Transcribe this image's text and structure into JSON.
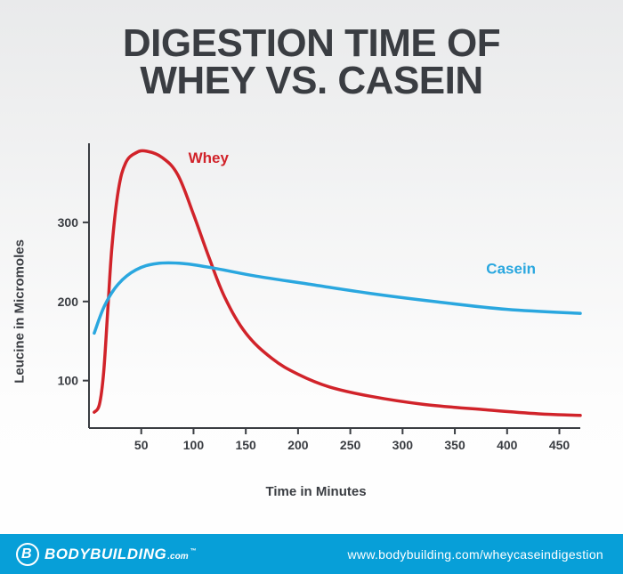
{
  "title_line1": "DIGESTION TIME OF",
  "title_line2": "WHEY VS. CASEIN",
  "chart": {
    "type": "line",
    "xlabel": "Time in Minutes",
    "ylabel": "Leucine in Micromoles",
    "xlim": [
      0,
      470
    ],
    "ylim": [
      40,
      400
    ],
    "xticks": [
      50,
      100,
      150,
      200,
      250,
      300,
      350,
      400,
      450
    ],
    "yticks": [
      100,
      200,
      300
    ],
    "axis_color": "#3a3d42",
    "axis_width": 2,
    "tick_fontsize": 14,
    "label_fontsize": 15,
    "line_width": 3.5,
    "background_gradient": [
      "#e9eaeb",
      "#ffffff"
    ],
    "series": [
      {
        "name": "Whey",
        "color": "#d1232a",
        "label_pos": {
          "x": 95,
          "y": 375
        },
        "points": [
          [
            5,
            60
          ],
          [
            10,
            70
          ],
          [
            14,
            110
          ],
          [
            18,
            190
          ],
          [
            22,
            270
          ],
          [
            28,
            340
          ],
          [
            35,
            375
          ],
          [
            45,
            388
          ],
          [
            55,
            390
          ],
          [
            70,
            382
          ],
          [
            85,
            360
          ],
          [
            100,
            310
          ],
          [
            115,
            255
          ],
          [
            130,
            205
          ],
          [
            150,
            160
          ],
          [
            175,
            128
          ],
          [
            200,
            108
          ],
          [
            230,
            92
          ],
          [
            270,
            80
          ],
          [
            320,
            70
          ],
          [
            380,
            63
          ],
          [
            430,
            58
          ],
          [
            470,
            56
          ]
        ]
      },
      {
        "name": "Casein",
        "color": "#2aa7df",
        "label_pos": {
          "x": 380,
          "y": 235
        },
        "points": [
          [
            5,
            160
          ],
          [
            15,
            195
          ],
          [
            28,
            222
          ],
          [
            45,
            240
          ],
          [
            65,
            248
          ],
          [
            90,
            248
          ],
          [
            120,
            242
          ],
          [
            160,
            232
          ],
          [
            210,
            222
          ],
          [
            270,
            210
          ],
          [
            330,
            200
          ],
          [
            400,
            190
          ],
          [
            470,
            185
          ]
        ]
      }
    ]
  },
  "footer": {
    "bg_color": "#079fd8",
    "brand_main": "BODYBUILDING",
    "brand_suffix": ".com",
    "brand_tm": "™",
    "url": "www.bodybuilding.com/wheycaseindigestion"
  }
}
